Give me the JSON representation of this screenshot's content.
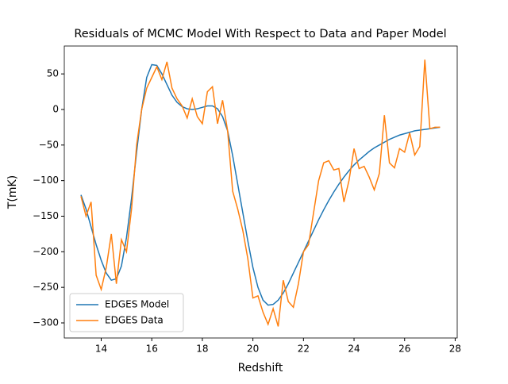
{
  "chart_data": {
    "type": "line",
    "title": "Residuals of MCMC Model With Respect to Data and Paper Model",
    "xlabel": "Redshift",
    "ylabel": "T(mK)",
    "x": [
      13.2,
      13.4,
      13.6,
      13.8,
      14.0,
      14.2,
      14.4,
      14.6,
      14.8,
      15.0,
      15.2,
      15.4,
      15.6,
      15.8,
      16.0,
      16.2,
      16.4,
      16.6,
      16.8,
      17.0,
      17.2,
      17.4,
      17.6,
      17.8,
      18.0,
      18.2,
      18.4,
      18.6,
      18.8,
      19.0,
      19.2,
      19.4,
      19.6,
      19.8,
      20.0,
      20.2,
      20.4,
      20.6,
      20.8,
      21.0,
      21.2,
      21.4,
      21.6,
      21.8,
      22.0,
      22.2,
      22.4,
      22.6,
      22.8,
      23.0,
      23.2,
      23.4,
      23.6,
      23.8,
      24.0,
      24.2,
      24.4,
      24.6,
      24.8,
      25.0,
      25.2,
      25.4,
      25.6,
      25.8,
      26.0,
      26.2,
      26.4,
      26.6,
      26.8,
      27.0,
      27.2,
      27.4
    ],
    "series": [
      {
        "name": "EDGES Model",
        "color": "#1f77b4",
        "values": [
          -120,
          -140,
          -165,
          -190,
          -212,
          -230,
          -240,
          -238,
          -220,
          -180,
          -125,
          -60,
          0,
          45,
          63,
          62,
          50,
          35,
          20,
          10,
          4,
          1,
          0,
          1,
          3,
          5,
          5,
          1,
          -10,
          -30,
          -65,
          -105,
          -145,
          -185,
          -222,
          -250,
          -268,
          -275,
          -274,
          -268,
          -258,
          -245,
          -230,
          -215,
          -200,
          -185,
          -170,
          -155,
          -141,
          -128,
          -116,
          -105,
          -95,
          -86,
          -78,
          -71,
          -65,
          -59,
          -54,
          -50,
          -46,
          -42,
          -39,
          -36,
          -34,
          -32,
          -30,
          -29,
          -28,
          -27,
          -26,
          -25
        ]
      },
      {
        "name": "EDGES Data",
        "color": "#ff7f0e",
        "values": [
          -122,
          -150,
          -130,
          -233,
          -253,
          -222,
          -175,
          -245,
          -183,
          -200,
          -140,
          -50,
          0,
          30,
          45,
          60,
          42,
          67,
          30,
          15,
          5,
          -12,
          15,
          -10,
          -20,
          25,
          32,
          -20,
          13,
          -30,
          -115,
          -140,
          -170,
          -210,
          -265,
          -262,
          -285,
          -302,
          -280,
          -305,
          -240,
          -270,
          -278,
          -245,
          -200,
          -190,
          -145,
          -100,
          -75,
          -72,
          -85,
          -83,
          -130,
          -100,
          -55,
          -83,
          -80,
          -95,
          -113,
          -90,
          -8,
          -75,
          -82,
          -55,
          -60,
          -33,
          -64,
          -52,
          70,
          -27,
          -25,
          -25
        ]
      }
    ],
    "xlim": [
      12.54,
      28.08
    ],
    "ylim": [
      -321.2,
      89.2
    ],
    "xticks": [
      14,
      16,
      18,
      20,
      22,
      24,
      26,
      28
    ],
    "yticks": [
      {
        "value": -300,
        "label": "−300"
      },
      {
        "value": -250,
        "label": "−250"
      },
      {
        "value": -200,
        "label": "−200"
      },
      {
        "value": -150,
        "label": "−150"
      },
      {
        "value": -100,
        "label": "−100"
      },
      {
        "value": -50,
        "label": "−50"
      },
      0,
      50
    ],
    "legend": "lower left"
  }
}
